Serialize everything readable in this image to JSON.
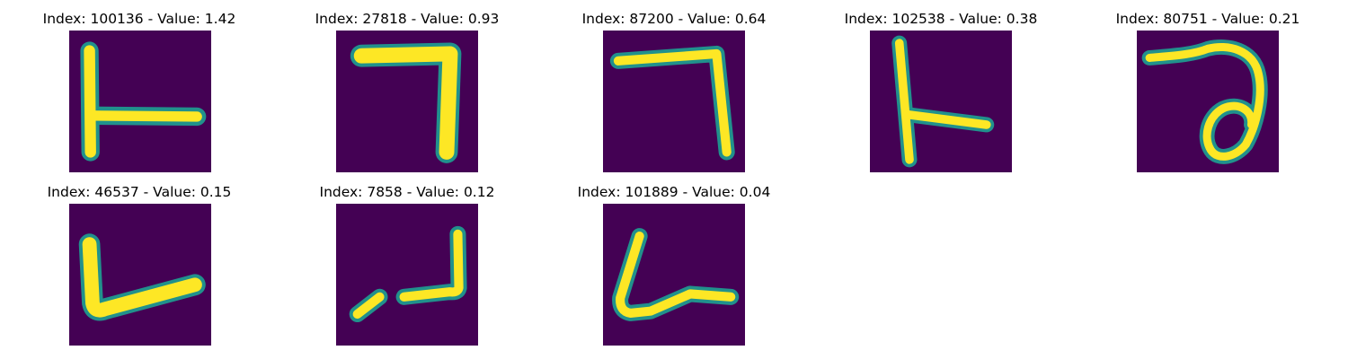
{
  "panels": [
    {
      "title": "Index: 100136 - Value: 1.42",
      "glyph": "glyph-tee-right"
    },
    {
      "title": "Index: 27818 - Value: 0.93",
      "glyph": "glyph-hook-corner"
    },
    {
      "title": "Index: 87200 - Value: 0.64",
      "glyph": "glyph-hook-corner-thin"
    },
    {
      "title": "Index: 102538 - Value: 0.38",
      "glyph": "glyph-tee-right-thin"
    },
    {
      "title": "Index: 80751 - Value: 0.21",
      "glyph": "glyph-loop-curve"
    },
    {
      "title": "Index: 46537 - Value: 0.15",
      "glyph": "glyph-l-shape"
    },
    {
      "title": "Index: 7858 - Value: 0.12",
      "glyph": "glyph-broken-l"
    },
    {
      "title": "Index: 101889 - Value: 0.04",
      "glyph": "glyph-l-slanted"
    }
  ],
  "colors": {
    "background_cell": "#440154",
    "stroke_edge": "#21918c",
    "stroke_mid": "#5ec962",
    "stroke_core": "#fde725"
  }
}
